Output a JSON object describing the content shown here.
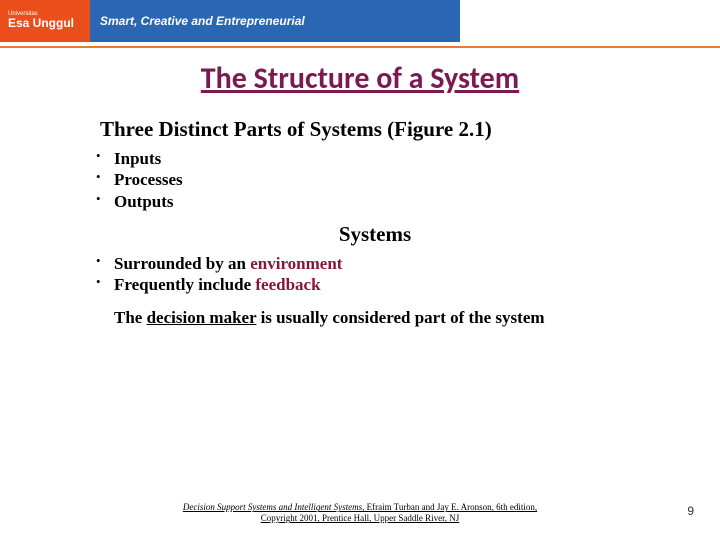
{
  "header": {
    "logo_top": "Universitas",
    "logo_main": "Esa Unggul",
    "tagline": "Smart, Creative and Entrepreneurial",
    "orange": "#e94e1b",
    "blue": "#2a66b1",
    "line": "#e87b2f"
  },
  "slide": {
    "title": "The Structure of a System",
    "title_color": "#7b1a52",
    "subheading1": "Three Distinct Parts of Systems (Figure 2.1)",
    "list1": [
      "Inputs",
      "Processes",
      "Outputs"
    ],
    "subheading2": "Systems",
    "list2_pre": [
      "Surrounded by an ",
      "Frequently include "
    ],
    "list2_kw": [
      "environment",
      "feedback"
    ],
    "para_pre": "The ",
    "para_ul": "decision maker",
    "para_post": " is usually considered part of the system",
    "keyword_color": "#8a1538"
  },
  "footer": {
    "book": "Decision Support Systems and Intelligent Systems,",
    "rest1": " Efraim Turban and Jay E. Aronson, 6th edition,",
    "rest2": "Copyright 2001, Prentice Hall, Upper Saddle River, NJ",
    "page": "9"
  }
}
